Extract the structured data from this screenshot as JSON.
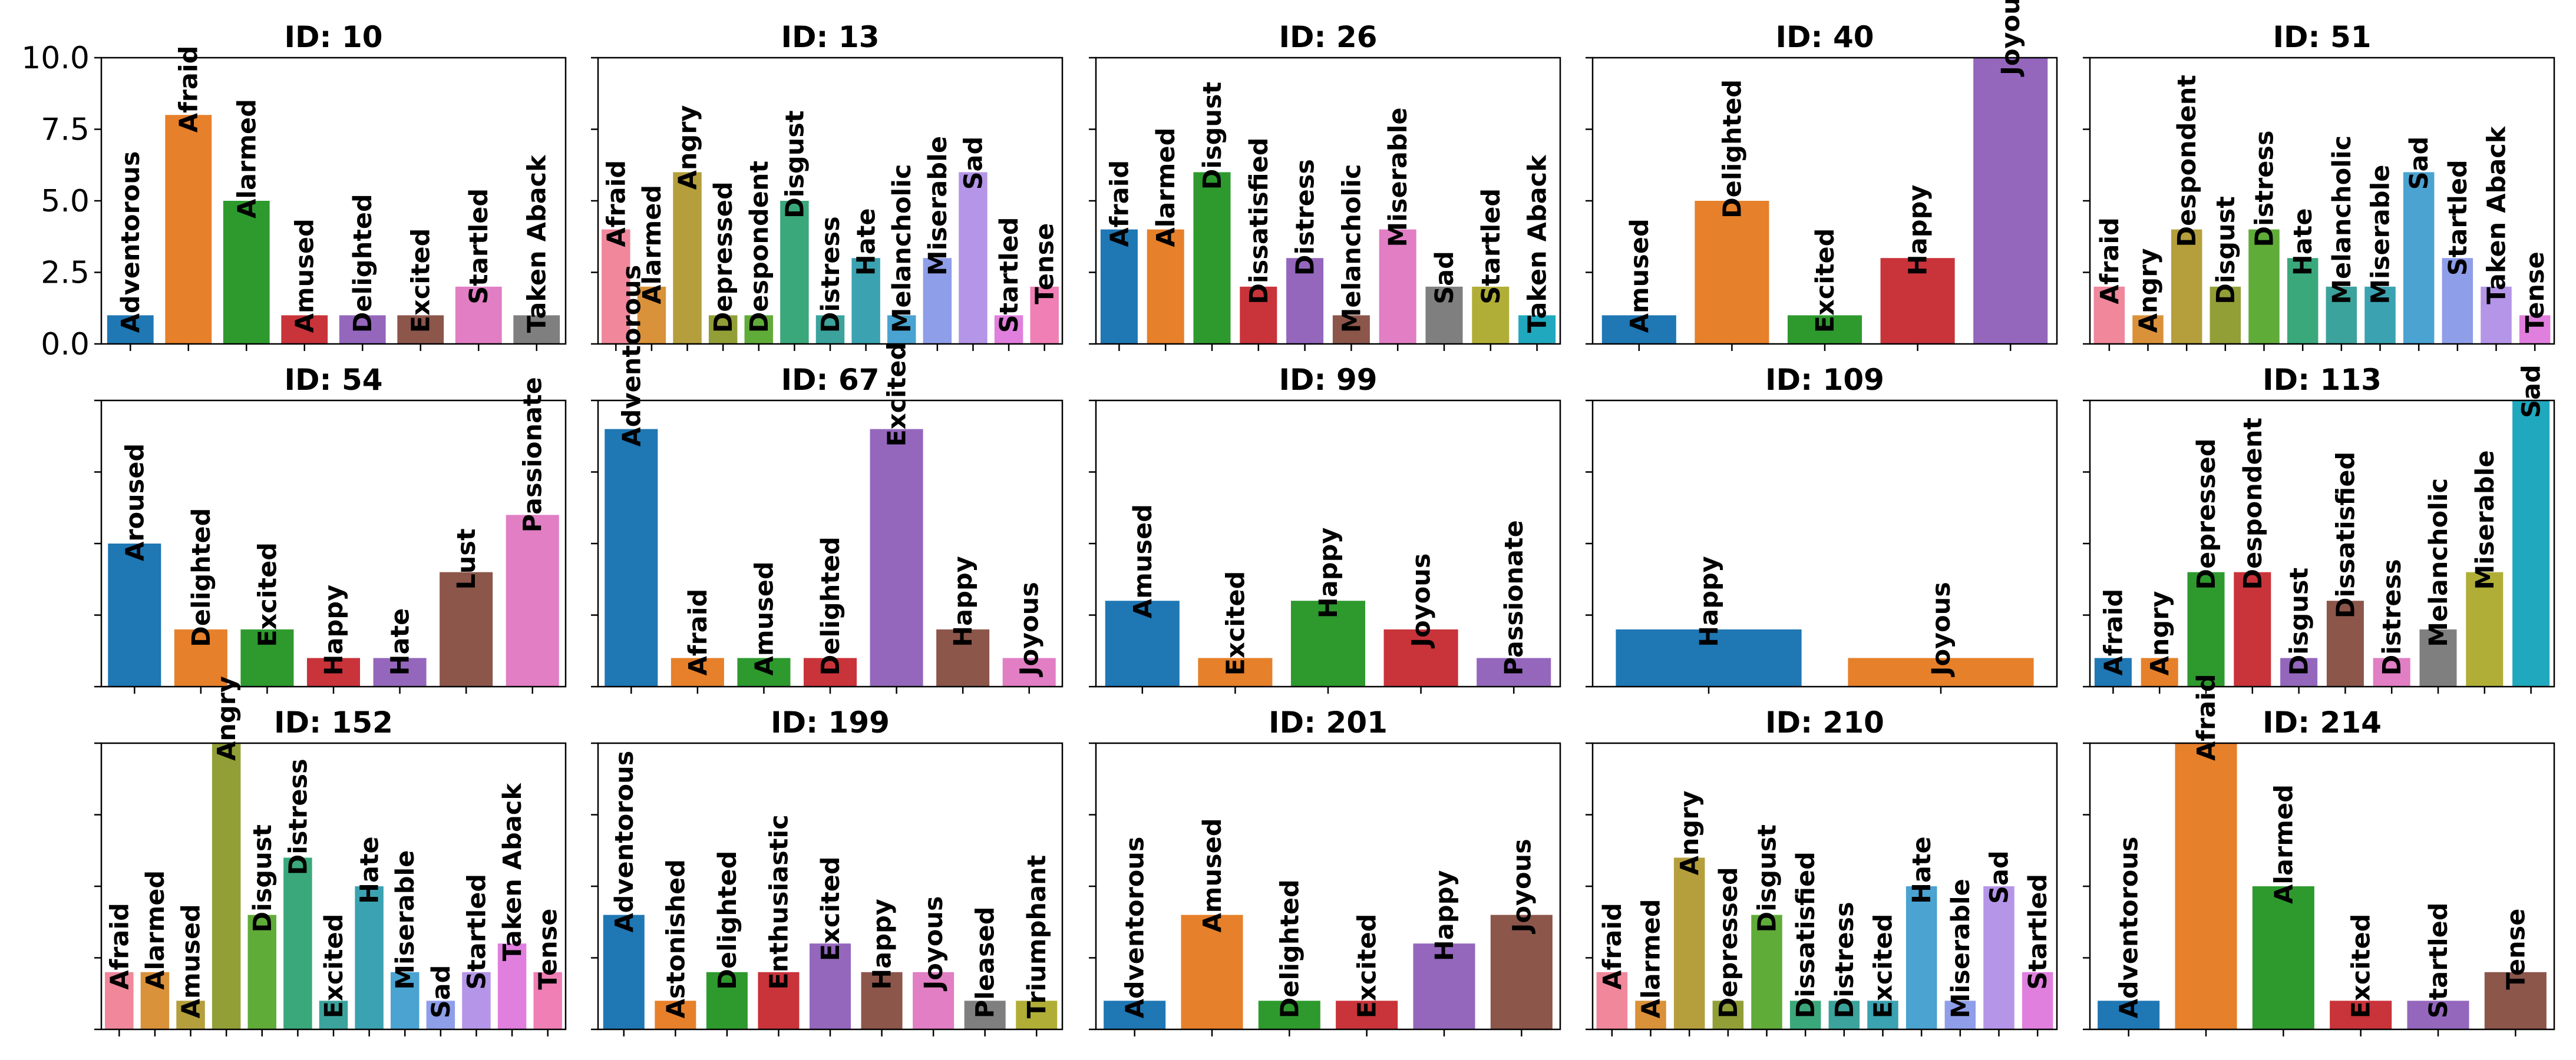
{
  "chart_data": {
    "type": "bar",
    "layout": "3x5 grid of subplots, shared y-axis",
    "ylim": [
      0,
      10
    ],
    "yticks": [
      "0.0",
      "2.5",
      "5.0",
      "7.5",
      "10.0"
    ],
    "palette": [
      "#1f77b4",
      "#e6802a",
      "#2e9a2e",
      "#c9333a",
      "#9467bd",
      "#8c564b",
      "#e17ec4",
      "#7f7f7f",
      "#b0ae36",
      "#20a9be"
    ],
    "husl_palette": [
      "#f0879b",
      "#d9913a",
      "#b59f3c",
      "#929f37",
      "#60ac39",
      "#3ba87c",
      "#3ba39c",
      "#3ba2b1",
      "#4aa3d1",
      "#8f9ee9",
      "#b595e8",
      "#e07fdd",
      "#f07fb5"
    ],
    "subplots": [
      {
        "title": "ID: 10",
        "palette": "tab",
        "categories": [
          "Adventorous",
          "Afraid",
          "Alarmed",
          "Amused",
          "Delighted",
          "Excited",
          "Startled",
          "Taken Aback"
        ],
        "values": [
          1,
          8,
          5,
          1,
          1,
          1,
          2,
          1
        ]
      },
      {
        "title": "ID: 13",
        "palette": "husl",
        "categories": [
          "Afraid",
          "Alarmed",
          "Angry",
          "Depressed",
          "Despondent",
          "Disgust",
          "Distress",
          "Hate",
          "Melancholic",
          "Miserable",
          "Sad",
          "Startled",
          "Tense"
        ],
        "values": [
          4,
          2,
          6,
          1,
          1,
          5,
          1,
          3,
          1,
          3,
          6,
          1,
          2
        ]
      },
      {
        "title": "ID: 26",
        "palette": "tab",
        "categories": [
          "Afraid",
          "Alarmed",
          "Disgust",
          "Dissatisfied",
          "Distress",
          "Melancholic",
          "Miserable",
          "Sad",
          "Startled",
          "Taken Aback"
        ],
        "values": [
          4,
          4,
          6,
          2,
          3,
          1,
          4,
          2,
          2,
          1
        ]
      },
      {
        "title": "ID: 40",
        "palette": "tab",
        "categories": [
          "Amused",
          "Delighted",
          "Excited",
          "Happy",
          "Joyous"
        ],
        "values": [
          1,
          5,
          1,
          3,
          10
        ]
      },
      {
        "title": "ID: 51",
        "palette": "husl",
        "categories": [
          "Afraid",
          "Angry",
          "Despondent",
          "Disgust",
          "Distress",
          "Hate",
          "Melancholic",
          "Miserable",
          "Sad",
          "Startled",
          "Taken Aback",
          "Tense"
        ],
        "values": [
          2,
          1,
          4,
          2,
          4,
          3,
          2,
          2,
          6,
          3,
          2,
          1
        ]
      },
      {
        "title": "ID: 54",
        "palette": "tab",
        "categories": [
          "Aroused",
          "Delighted",
          "Excited",
          "Happy",
          "Hate",
          "Lust",
          "Passionate"
        ],
        "values": [
          5,
          2,
          2,
          1,
          1,
          4,
          6
        ]
      },
      {
        "title": "ID: 67",
        "palette": "tab",
        "categories": [
          "Adventorous",
          "Afraid",
          "Amused",
          "Delighted",
          "Excited",
          "Happy",
          "Joyous"
        ],
        "values": [
          9,
          1,
          1,
          1,
          9,
          2,
          1
        ]
      },
      {
        "title": "ID: 99",
        "palette": "tab",
        "categories": [
          "Amused",
          "Excited",
          "Happy",
          "Joyous",
          "Passionate"
        ],
        "values": [
          3,
          1,
          3,
          2,
          1
        ]
      },
      {
        "title": "ID: 109",
        "palette": "tab",
        "categories": [
          "Happy",
          "Joyous"
        ],
        "values": [
          2,
          1
        ]
      },
      {
        "title": "ID: 113",
        "palette": "tab",
        "categories": [
          "Afraid",
          "Angry",
          "Depressed",
          "Despondent",
          "Disgust",
          "Dissatisfied",
          "Distress",
          "Melancholic",
          "Miserable",
          "Sad"
        ],
        "values": [
          1,
          1,
          4,
          4,
          1,
          3,
          1,
          2,
          4,
          10
        ]
      },
      {
        "title": "ID: 152",
        "palette": "husl",
        "categories": [
          "Afraid",
          "Alarmed",
          "Amused",
          "Angry",
          "Disgust",
          "Distress",
          "Excited",
          "Hate",
          "Miserable",
          "Sad",
          "Startled",
          "Taken Aback",
          "Tense"
        ],
        "values": [
          2,
          2,
          1,
          10,
          4,
          6,
          1,
          5,
          2,
          1,
          2,
          3,
          2
        ]
      },
      {
        "title": "ID: 199",
        "palette": "tab",
        "categories": [
          "Adventorous",
          "Astonished",
          "Delighted",
          "Enthusiastic",
          "Excited",
          "Happy",
          "Joyous",
          "Pleased",
          "Triumphant"
        ],
        "values": [
          4,
          1,
          2,
          2,
          3,
          2,
          2,
          1,
          1
        ]
      },
      {
        "title": "ID: 201",
        "palette": "tab",
        "categories": [
          "Adventorous",
          "Amused",
          "Delighted",
          "Excited",
          "Happy",
          "Joyous"
        ],
        "values": [
          1,
          4,
          1,
          1,
          3,
          4
        ]
      },
      {
        "title": "ID: 210",
        "palette": "husl",
        "categories": [
          "Afraid",
          "Alarmed",
          "Angry",
          "Depressed",
          "Disgust",
          "Dissatisfied",
          "Distress",
          "Excited",
          "Hate",
          "Miserable",
          "Sad",
          "Startled"
        ],
        "values": [
          2,
          1,
          6,
          1,
          4,
          1,
          1,
          1,
          5,
          1,
          5,
          2
        ]
      },
      {
        "title": "ID: 214",
        "palette": "tab",
        "categories": [
          "Adventorous",
          "Afraid",
          "Alarmed",
          "Excited",
          "Startled",
          "Tense"
        ],
        "values": [
          1,
          10,
          5,
          1,
          1,
          2
        ]
      }
    ]
  }
}
